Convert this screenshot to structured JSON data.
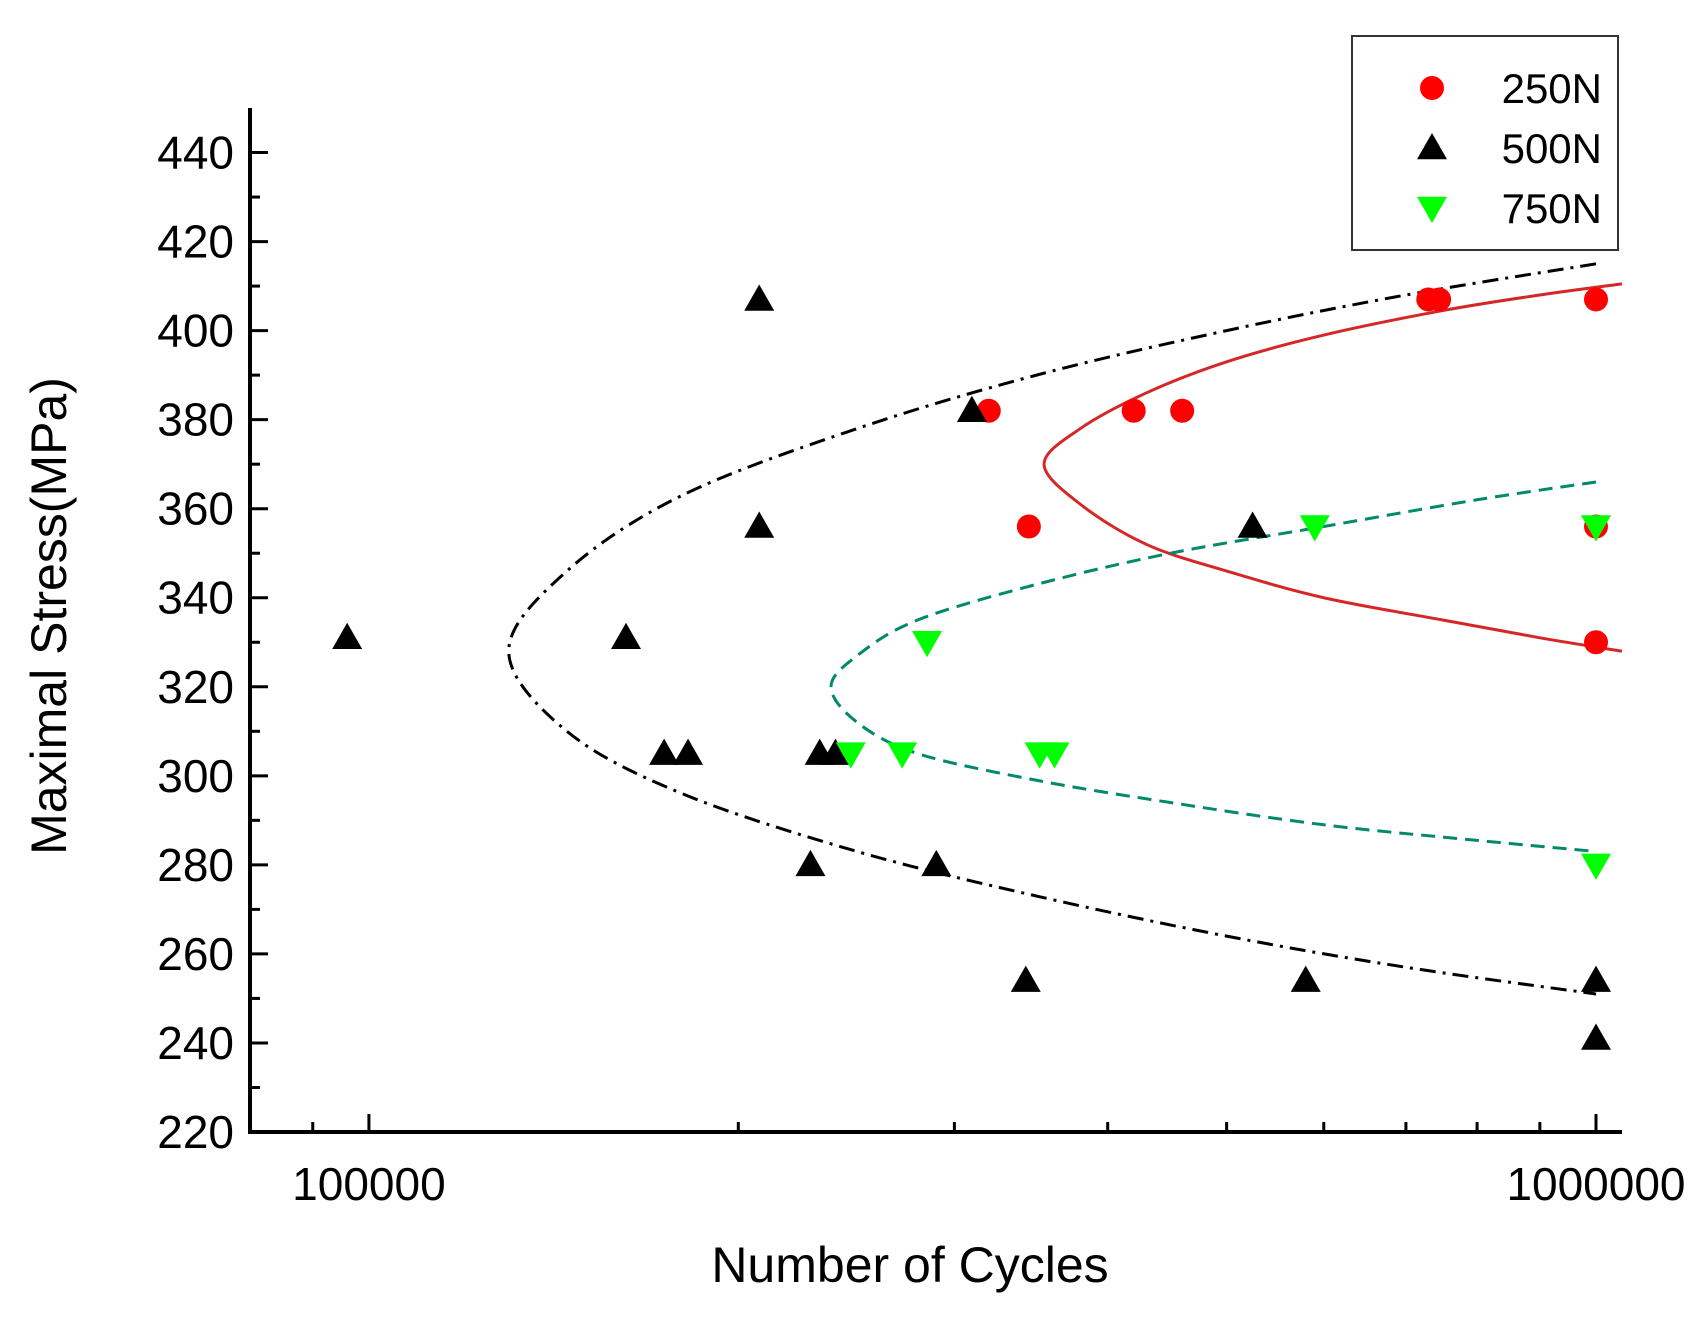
{
  "chart_data": {
    "type": "scatter",
    "title": "",
    "xlabel": "Number of Cycles",
    "ylabel": "Maximal Stress(MPa)",
    "xscale": "log",
    "xlim": [
      80000,
      1050000
    ],
    "ylim": [
      220,
      450
    ],
    "x_ticks": [
      100000,
      1000000
    ],
    "x_tick_labels": [
      "100000",
      "1000000"
    ],
    "y_ticks": [
      220,
      240,
      260,
      280,
      300,
      320,
      340,
      360,
      380,
      400,
      420,
      440
    ],
    "y_tick_labels": [
      "220",
      "240",
      "260",
      "280",
      "300",
      "320",
      "340",
      "360",
      "380",
      "400",
      "420",
      "440"
    ],
    "legend_position": "top-right",
    "series": [
      {
        "name": "250N",
        "marker": "circle",
        "color": "#ff0000",
        "points": [
          {
            "x": 320000,
            "y": 382
          },
          {
            "x": 420000,
            "y": 382
          },
          {
            "x": 460000,
            "y": 382
          },
          {
            "x": 345000,
            "y": 356
          },
          {
            "x": 730000,
            "y": 407
          },
          {
            "x": 745000,
            "y": 407
          },
          {
            "x": 1000000,
            "y": 407
          },
          {
            "x": 1000000,
            "y": 356
          },
          {
            "x": 1000000,
            "y": 330
          }
        ]
      },
      {
        "name": "500N",
        "marker": "triangle-up",
        "color": "#000000",
        "points": [
          {
            "x": 96000,
            "y": 331
          },
          {
            "x": 162000,
            "y": 331
          },
          {
            "x": 174000,
            "y": 305
          },
          {
            "x": 182000,
            "y": 305
          },
          {
            "x": 208000,
            "y": 407
          },
          {
            "x": 208000,
            "y": 356
          },
          {
            "x": 233000,
            "y": 305
          },
          {
            "x": 240000,
            "y": 305
          },
          {
            "x": 229000,
            "y": 280
          },
          {
            "x": 290000,
            "y": 280
          },
          {
            "x": 310000,
            "y": 382
          },
          {
            "x": 343000,
            "y": 254
          },
          {
            "x": 525000,
            "y": 356
          },
          {
            "x": 580000,
            "y": 254
          },
          {
            "x": 1000000,
            "y": 254
          },
          {
            "x": 1000000,
            "y": 241
          }
        ]
      },
      {
        "name": "750N",
        "marker": "triangle-down",
        "color": "#00ff00",
        "points": [
          {
            "x": 247000,
            "y": 305
          },
          {
            "x": 272000,
            "y": 305
          },
          {
            "x": 285000,
            "y": 330
          },
          {
            "x": 352000,
            "y": 305
          },
          {
            "x": 362000,
            "y": 305
          },
          {
            "x": 590000,
            "y": 356
          },
          {
            "x": 1000000,
            "y": 356
          },
          {
            "x": 1000000,
            "y": 280
          }
        ]
      }
    ],
    "fit_curves": [
      {
        "series": "250N",
        "style": "solid",
        "color": "#d62728",
        "points": [
          {
            "x": 1050000,
            "y": 410.5
          },
          {
            "x": 900000,
            "y": 408
          },
          {
            "x": 750000,
            "y": 404.5
          },
          {
            "x": 600000,
            "y": 399
          },
          {
            "x": 500000,
            "y": 393
          },
          {
            "x": 430000,
            "y": 386
          },
          {
            "x": 380000,
            "y": 378
          },
          {
            "x": 355000,
            "y": 370
          },
          {
            "x": 380000,
            "y": 361
          },
          {
            "x": 430000,
            "y": 352
          },
          {
            "x": 500000,
            "y": 346
          },
          {
            "x": 600000,
            "y": 340
          },
          {
            "x": 750000,
            "y": 335
          },
          {
            "x": 900000,
            "y": 331
          },
          {
            "x": 1050000,
            "y": 328
          }
        ]
      },
      {
        "series": "500N",
        "style": "dashdot",
        "color": "#000000",
        "points": [
          {
            "x": 1000000,
            "y": 415
          },
          {
            "x": 700000,
            "y": 408
          },
          {
            "x": 500000,
            "y": 400
          },
          {
            "x": 350000,
            "y": 390
          },
          {
            "x": 250000,
            "y": 378
          },
          {
            "x": 180000,
            "y": 363
          },
          {
            "x": 145000,
            "y": 346
          },
          {
            "x": 130000,
            "y": 328
          },
          {
            "x": 145000,
            "y": 310
          },
          {
            "x": 180000,
            "y": 296
          },
          {
            "x": 250000,
            "y": 283
          },
          {
            "x": 350000,
            "y": 273
          },
          {
            "x": 500000,
            "y": 264
          },
          {
            "x": 700000,
            "y": 257
          },
          {
            "x": 1000000,
            "y": 251
          }
        ]
      },
      {
        "series": "750N",
        "style": "dashed",
        "color": "#00896b",
        "points": [
          {
            "x": 1000000,
            "y": 366
          },
          {
            "x": 800000,
            "y": 362
          },
          {
            "x": 600000,
            "y": 356
          },
          {
            "x": 450000,
            "y": 350
          },
          {
            "x": 350000,
            "y": 343
          },
          {
            "x": 280000,
            "y": 335
          },
          {
            "x": 250000,
            "y": 327
          },
          {
            "x": 238000,
            "y": 320
          },
          {
            "x": 250000,
            "y": 312
          },
          {
            "x": 280000,
            "y": 305
          },
          {
            "x": 350000,
            "y": 299
          },
          {
            "x": 450000,
            "y": 294
          },
          {
            "x": 600000,
            "y": 289
          },
          {
            "x": 800000,
            "y": 285.5
          },
          {
            "x": 1000000,
            "y": 283
          }
        ]
      }
    ]
  }
}
